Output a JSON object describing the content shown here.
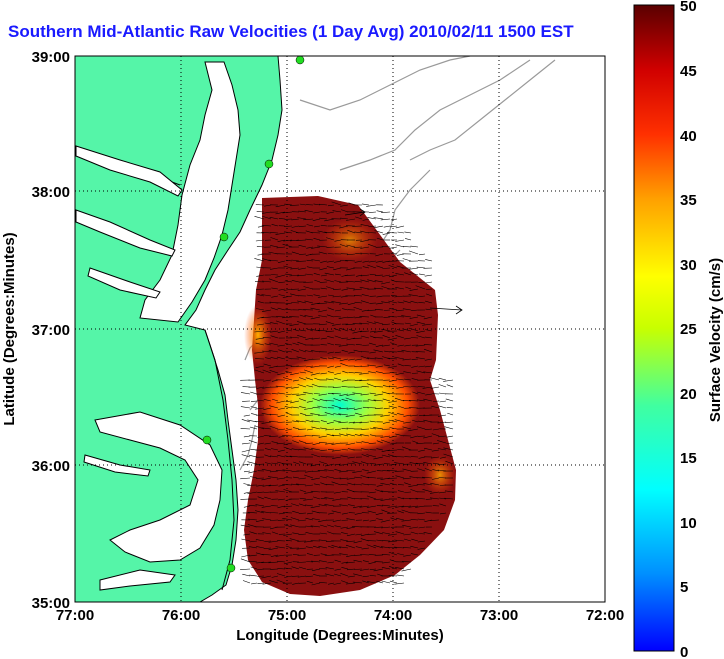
{
  "title": "Southern Mid-Atlantic Raw Velocities (1 Day Avg) 2010/02/11 1500 EST",
  "map": {
    "xlabel": "Longitude (Degrees:Minutes)",
    "ylabel": "Latitude (Degrees:Minutes)",
    "x_ticks": [
      "77:00",
      "76:00",
      "75:00",
      "74:00",
      "73:00",
      "72:00"
    ],
    "y_ticks": [
      "39:00",
      "38:00",
      "37:00",
      "36:00",
      "35:00"
    ],
    "grid": "dotted",
    "colors": {
      "land": "#55f5a8",
      "coast": "#000000",
      "bathymetry": "#9a9a9a",
      "station": "#22dd22"
    }
  },
  "colorbar": {
    "label": "Surface Velocity (cm/s)",
    "ticks": [
      "50",
      "45",
      "40",
      "35",
      "30",
      "25",
      "20",
      "15",
      "10",
      "5",
      "0"
    ],
    "range": [
      0,
      50
    ],
    "colormap": [
      "#0000ff",
      "#00c8ff",
      "#00ffc0",
      "#c8ff00",
      "#ffff00",
      "#ffa000",
      "#ff3000",
      "#d80000",
      "#5a0000"
    ]
  }
}
